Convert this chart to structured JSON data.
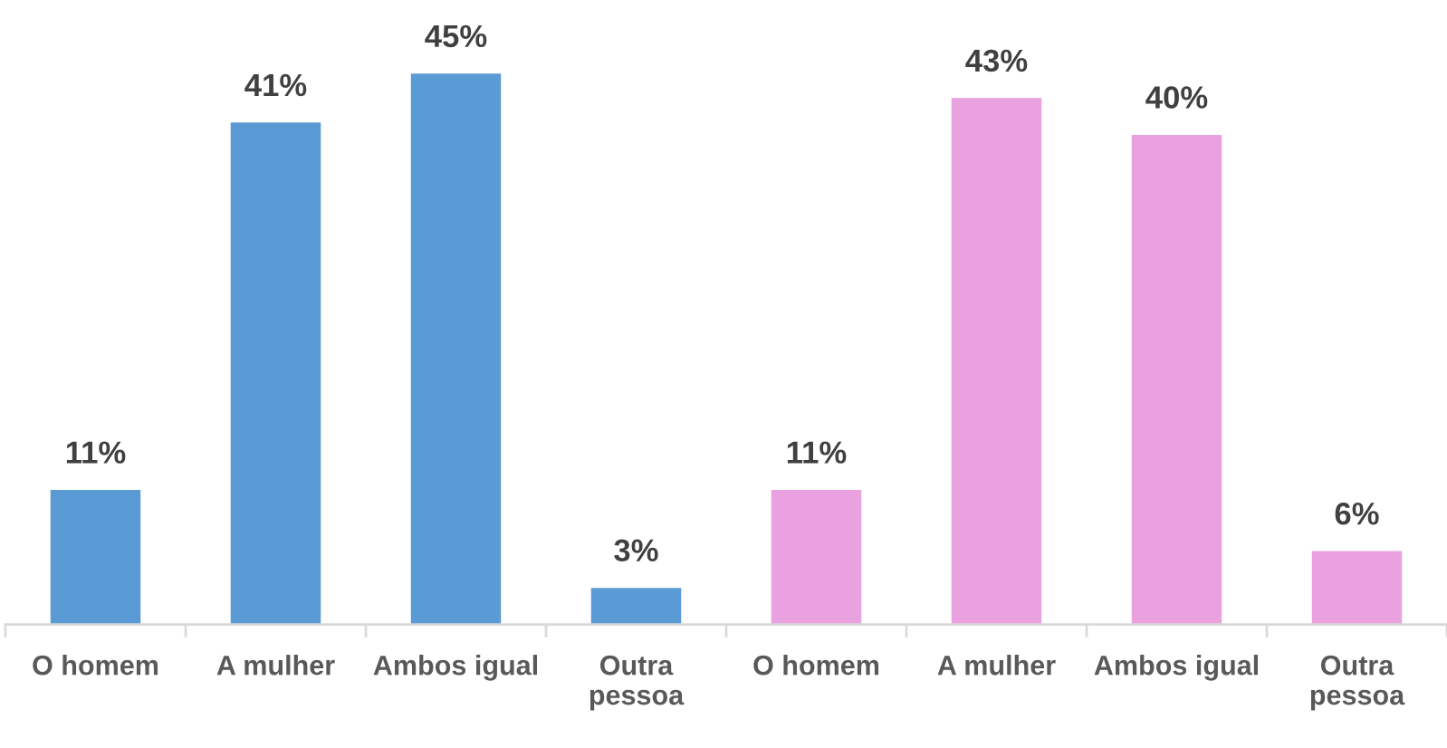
{
  "chart_data": {
    "type": "bar",
    "categories": [
      "O homem",
      "A mulher",
      "Ambos igual",
      "Outra pessoa",
      "O homem",
      "A mulher",
      "Ambos igual",
      "Outra pessoa"
    ],
    "values": [
      11,
      41,
      45,
      3,
      11,
      43,
      40,
      6
    ],
    "colors": [
      "#5b9bd5",
      "#5b9bd5",
      "#5b9bd5",
      "#5b9bd5",
      "#e9a1df",
      "#e9a1df",
      "#e9a1df",
      "#e9a1df"
    ],
    "value_labels": [
      "11%",
      "41%",
      "45%",
      "3%",
      "11%",
      "43%",
      "40%",
      "6%"
    ]
  }
}
